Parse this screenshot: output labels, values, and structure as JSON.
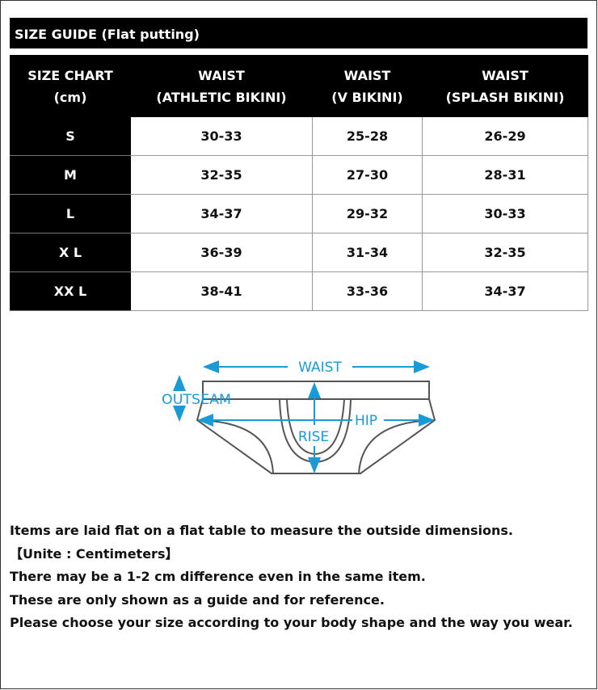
{
  "title": "SIZE GUIDE (Flat putting)",
  "table": {
    "headers": [
      [
        "SIZE CHART",
        "(cm)"
      ],
      [
        "WAIST",
        "(ATHLETIC BIKINI)"
      ],
      [
        "WAIST",
        "(V BIKINI)"
      ],
      [
        "WAIST",
        "(SPLASH BIKINI)"
      ]
    ],
    "rows": [
      [
        "S",
        "30-33",
        "25-28",
        "26-29"
      ],
      [
        "M",
        "32-35",
        "27-30",
        "28-31"
      ],
      [
        "L",
        "34-37",
        "29-32",
        "30-33"
      ],
      [
        "X L",
        "36-39",
        "31-34",
        "32-35"
      ],
      [
        "XX L",
        "38-41",
        "33-36",
        "34-37"
      ]
    ]
  },
  "diagram": {
    "labels": {
      "waist": "WAIST",
      "outseam": "OUTSEAM",
      "hip": "HIP",
      "rise": "RISE"
    },
    "accent_color": "#1a9bd7",
    "line_color": "#555555"
  },
  "notes": [
    "Items are laid flat on a flat table to measure the outside dimensions.",
    "【Unite : Centimeters】",
    "There may be a 1-2 cm difference even in the same item.",
    "These are only shown as a guide and for reference.",
    "Please choose your size according to your body shape and the way you wear."
  ]
}
